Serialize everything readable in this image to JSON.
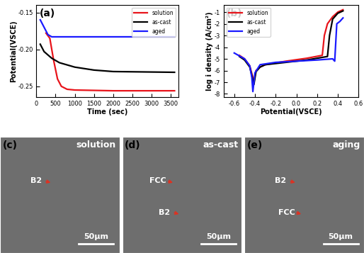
{
  "chart_data": [
    {
      "type": "line",
      "annotations": [
        "(a)"
      ],
      "x_label": "Time (sec)",
      "y_label": "Potential(VSCE)",
      "xlim": [
        0,
        3700
      ],
      "xticks": [
        0,
        500,
        1000,
        1500,
        2000,
        2500,
        3000,
        3500
      ],
      "ylim": [
        -0.265,
        -0.14
      ],
      "yticks": [
        -0.25,
        {
          "value": -0.2,
          "label": "-0.20"
        },
        -0.15
      ],
      "legend": "upper right",
      "grid": false,
      "series": [
        {
          "name": "solution",
          "color": "#e8141b",
          "x": [
            250,
            350,
            450,
            550,
            650,
            800,
            1000,
            2000,
            3600
          ],
          "values": [
            -0.178,
            -0.185,
            -0.215,
            -0.24,
            -0.25,
            -0.254,
            -0.255,
            -0.256,
            -0.256
          ]
        },
        {
          "name": "as-cast",
          "color": "#000000",
          "x": [
            100,
            200,
            400,
            600,
            1000,
            1500,
            2000,
            3600
          ],
          "values": [
            -0.193,
            -0.203,
            -0.212,
            -0.218,
            -0.224,
            -0.228,
            -0.23,
            -0.231
          ]
        },
        {
          "name": "aged",
          "color": "#1a1aff",
          "x": [
            100,
            200,
            300,
            400,
            1000,
            3600
          ],
          "values": [
            -0.16,
            -0.17,
            -0.18,
            -0.183,
            -0.183,
            -0.183
          ]
        }
      ]
    },
    {
      "type": "line",
      "annotations": [
        "(b)"
      ],
      "x_label": "Potential(VSCE)",
      "y_label": "log i density (A/cm²)",
      "xlim": [
        -0.7,
        0.6
      ],
      "xticks": [
        -0.6,
        -0.4,
        -0.2,
        0.0,
        0.2,
        0.4,
        0.6
      ],
      "ylim": [
        -8.3,
        -0.4
      ],
      "yticks": [
        -8,
        -7,
        -6,
        -5,
        -4,
        -3,
        -2,
        -1
      ],
      "legend": "upper left",
      "grid": false,
      "series": [
        {
          "name": "solution",
          "color": "#e8141b",
          "x": [
            -0.55,
            -0.5,
            -0.45,
            -0.42,
            -0.41,
            -0.39,
            -0.35,
            -0.3,
            -0.1,
            0.1,
            0.25,
            0.27,
            0.3,
            0.35,
            0.4,
            0.45
          ],
          "values": [
            -4.7,
            -5.0,
            -5.6,
            -6.6,
            -7.0,
            -6.0,
            -5.7,
            -5.5,
            -5.2,
            -4.95,
            -4.7,
            -3.0,
            -2.0,
            -1.4,
            -1.0,
            -0.8
          ]
        },
        {
          "name": "as-cast",
          "color": "#000000",
          "x": [
            -0.55,
            -0.5,
            -0.45,
            -0.42,
            -0.41,
            -0.39,
            -0.35,
            -0.3,
            -0.1,
            0.1,
            0.3,
            0.32,
            0.35,
            0.4,
            0.45
          ],
          "values": [
            -4.8,
            -5.1,
            -5.7,
            -6.8,
            -7.2,
            -6.1,
            -5.7,
            -5.5,
            -5.3,
            -5.1,
            -4.8,
            -3.0,
            -1.6,
            -1.1,
            -0.9
          ]
        },
        {
          "name": "aged",
          "color": "#1a1aff",
          "x": [
            -0.6,
            -0.5,
            -0.45,
            -0.43,
            -0.42,
            -0.4,
            -0.35,
            -0.2,
            0.0,
            0.2,
            0.35,
            0.37,
            0.39,
            0.42,
            0.45
          ],
          "values": [
            -4.5,
            -5.0,
            -5.6,
            -6.6,
            -7.8,
            -6.2,
            -5.5,
            -5.3,
            -5.2,
            -5.1,
            -5.0,
            -5.2,
            -2.0,
            -1.8,
            -1.5
          ]
        }
      ]
    }
  ],
  "micrographs": [
    {
      "panel": "(c)",
      "title": "solution",
      "phase_labels": [
        "B2"
      ],
      "scale_bar": "50μm"
    },
    {
      "panel": "(d)",
      "title": "as-cast",
      "phase_labels": [
        "FCC",
        "B2"
      ],
      "scale_bar": "50μm"
    },
    {
      "panel": "(e)",
      "title": "aging",
      "phase_labels": [
        "B2",
        "FCC"
      ],
      "scale_bar": "50μm"
    }
  ]
}
